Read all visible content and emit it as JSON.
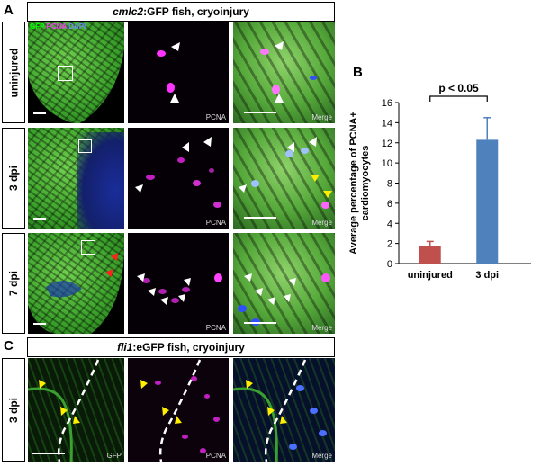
{
  "panel_a": {
    "letter": "A",
    "header_italic": "cmlc2",
    "header_rest": ":GFP fish, cryoinjury",
    "rows": [
      {
        "label": "uninjured"
      },
      {
        "label": "3 dpi"
      },
      {
        "label": "7 dpi"
      }
    ],
    "channel_legend": {
      "gfp": "GFP",
      "pcna": "PCNA",
      "dapi": "DAPI"
    },
    "col_labels": {
      "pcna": "PCNA",
      "merge": "Merge"
    }
  },
  "panel_b": {
    "letter": "B",
    "significance": "p < 0.05"
  },
  "panel_c": {
    "letter": "C",
    "header_italic": "fli1",
    "header_rest": ":eGFP fish, cryoinjury",
    "row_label": "3 dpi",
    "col_labels": {
      "gfp": "GFP",
      "pcna": "PCNA",
      "merge": "Merge"
    }
  },
  "colors": {
    "uninjured": "#c0504d",
    "dpi3": "#4f81bd",
    "green": "#00ff00",
    "magenta": "#ff00ff",
    "blue": "#4c6fff",
    "arrow_white": "#ffffff",
    "arrow_yellow": "#ffee00",
    "arrow_red": "#ff2020"
  },
  "chart_data": {
    "type": "bar",
    "categories": [
      "uninjured",
      "3 dpi"
    ],
    "values": [
      1.75,
      12.3
    ],
    "errors": [
      0.45,
      2.2
    ],
    "ylabel": "Average percentage of PCNA+ cardiomyocytes",
    "ylabel_lines": [
      "Average percentage of PCNA+",
      "cardiomyocytes"
    ],
    "ylim": [
      0,
      16
    ],
    "yticks": [
      0,
      2,
      4,
      6,
      8,
      10,
      12,
      14,
      16
    ],
    "bar_colors": [
      "#c0504d",
      "#4f81bd"
    ],
    "grid": false
  }
}
